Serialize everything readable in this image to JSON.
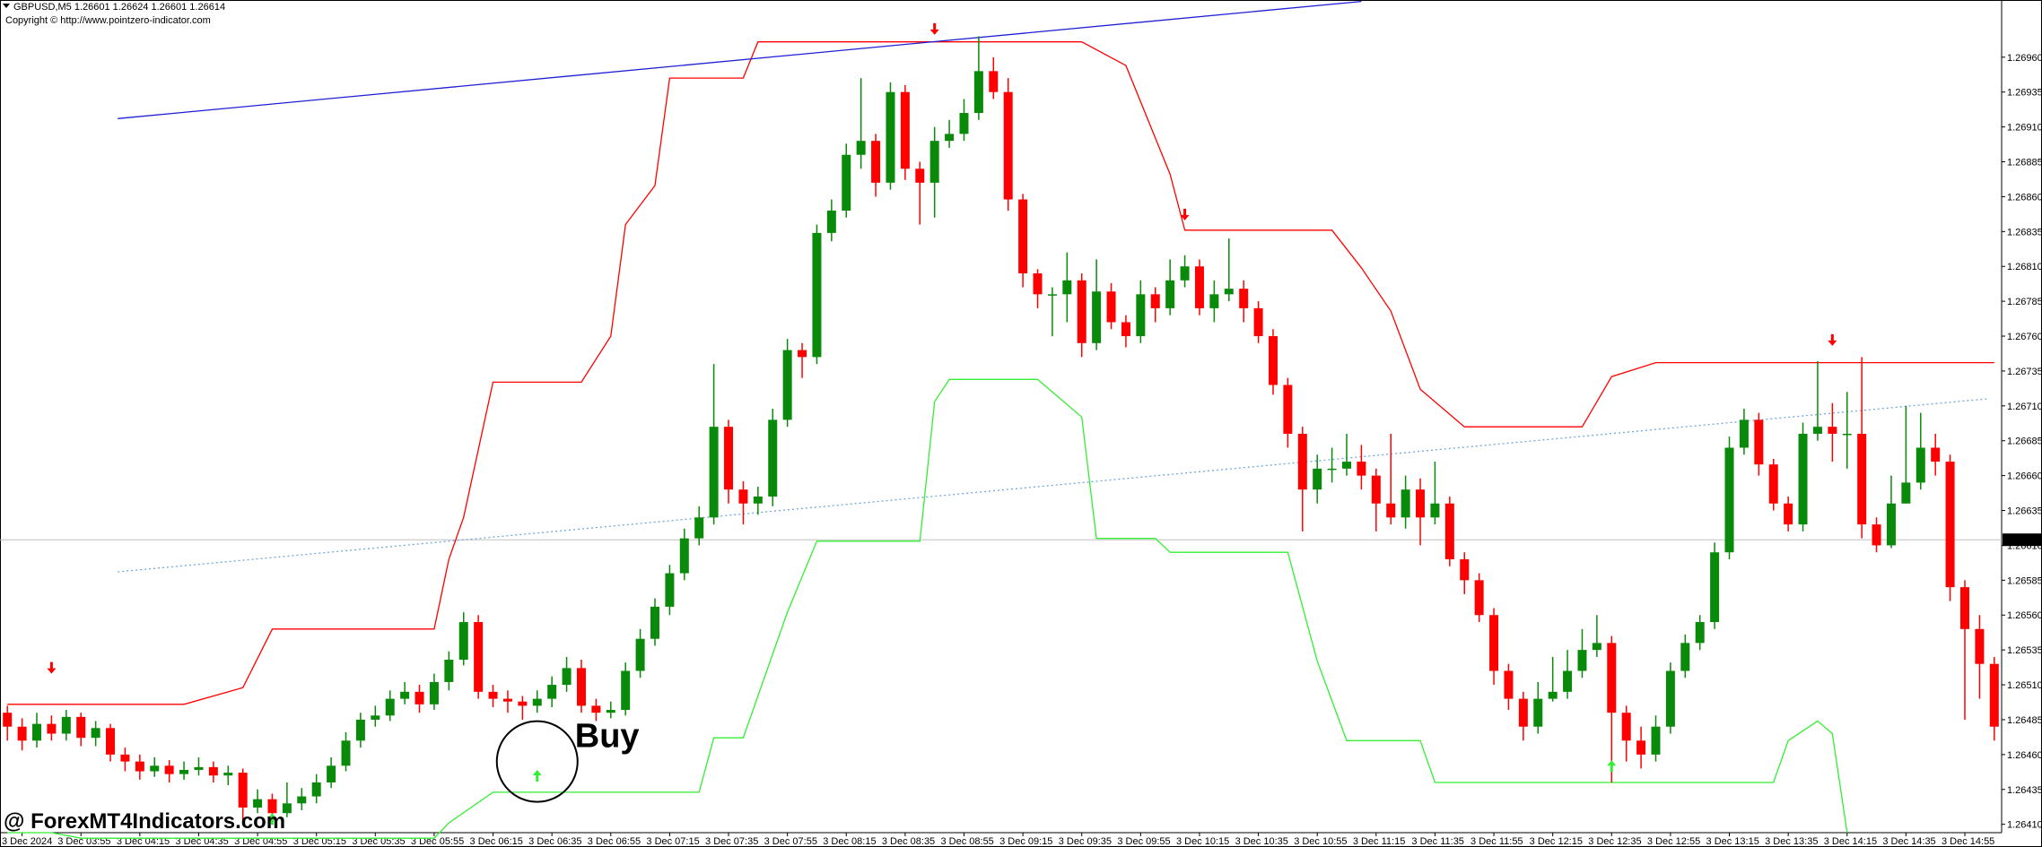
{
  "chart_data": {
    "type": "candlestick",
    "title": "GBPUSD,M5  1.26601 1.26624 1.26601 1.26614",
    "subtitle": "Copyright © http://www.pointzero-indicator.com",
    "up_color": "#0a8a0a",
    "down_color": "#ff0000",
    "open": [
      1.2649,
      1.2648,
      1.2647,
      1.26482,
      1.26475,
      1.26487,
      1.26472,
      1.26479,
      1.2646,
      1.26455,
      1.26448,
      1.26452,
      1.26446,
      1.26449,
      1.26451,
      1.26445,
      1.26447,
      1.26422,
      1.26428,
      1.26418,
      1.26425,
      1.2643,
      1.2644,
      1.26452,
      1.2647,
      1.26485,
      1.26488,
      1.265,
      1.26505,
      1.26496,
      1.26512,
      1.26528,
      1.26555,
      1.26505,
      1.265,
      1.26498,
      1.26495,
      1.265,
      1.2651,
      1.26522,
      1.26495,
      1.2649,
      1.26492,
      1.2652,
      1.26543,
      1.26566,
      1.2659,
      1.26615,
      1.2663,
      1.26695,
      1.2665,
      1.2664,
      1.26645,
      1.267,
      1.2675,
      1.26745,
      1.26834,
      1.2685,
      1.2689,
      1.269,
      1.2687,
      1.26935,
      1.2688,
      1.2687,
      1.269,
      1.26905,
      1.2692,
      1.2695,
      1.26935,
      1.26858,
      1.26805,
      1.2679,
      1.2679,
      1.268,
      1.26755,
      1.26792,
      1.2677,
      1.2676,
      1.2679,
      1.2678,
      1.268,
      1.2681,
      1.2678,
      1.2679,
      1.26794,
      1.2678,
      1.2676,
      1.26725,
      1.2669,
      1.2665,
      1.26665,
      1.26665,
      1.2667,
      1.2666,
      1.2664,
      1.2663,
      1.2665,
      1.2663,
      1.2664,
      1.266,
      1.26585,
      1.2656,
      1.2652,
      1.265,
      1.2648,
      1.265,
      1.26505,
      1.2652,
      1.26535,
      1.2654,
      1.2649,
      1.2647,
      1.2646,
      1.2648,
      1.2652,
      1.2654,
      1.26555,
      1.26605,
      1.2668,
      1.267,
      1.26668,
      1.2664,
      1.26625,
      1.2669,
      1.26695,
      1.2669,
      1.2669,
      1.26625,
      1.2661,
      1.2664,
      1.26655,
      1.2668,
      1.2667,
      1.2658,
      1.2655,
      1.26525
    ],
    "high": [
      1.26495,
      1.26486,
      1.2649,
      1.26488,
      1.26492,
      1.2649,
      1.26484,
      1.26482,
      1.26465,
      1.2646,
      1.26458,
      1.26456,
      1.26455,
      1.26458,
      1.26455,
      1.26452,
      1.2645,
      1.26435,
      1.26432,
      1.2644,
      1.26436,
      1.26446,
      1.26458,
      1.26476,
      1.2649,
      1.26495,
      1.26506,
      1.26512,
      1.2651,
      1.26518,
      1.26534,
      1.26562,
      1.2656,
      1.2651,
      1.26506,
      1.26502,
      1.26506,
      1.26516,
      1.2653,
      1.26528,
      1.265,
      1.26498,
      1.26526,
      1.2655,
      1.26572,
      1.26596,
      1.26622,
      1.26638,
      1.2674,
      1.267,
      1.26656,
      1.26652,
      1.26708,
      1.26758,
      1.26755,
      1.2684,
      1.26858,
      1.26898,
      1.26945,
      1.26905,
      1.26942,
      1.2694,
      1.26885,
      1.2691,
      1.26915,
      1.2693,
      1.26975,
      1.2696,
      1.26945,
      1.26862,
      1.26808,
      1.26795,
      1.2682,
      1.26805,
      1.26815,
      1.26798,
      1.26775,
      1.268,
      1.26795,
      1.26815,
      1.26818,
      1.26815,
      1.268,
      1.2683,
      1.268,
      1.26785,
      1.26765,
      1.2673,
      1.26695,
      1.26675,
      1.2668,
      1.2669,
      1.26682,
      1.26665,
      1.2669,
      1.2666,
      1.26658,
      1.2667,
      1.26645,
      1.26605,
      1.2659,
      1.26565,
      1.26525,
      1.26505,
      1.26512,
      1.2653,
      1.26535,
      1.2655,
      1.2656,
      1.26545,
      1.26495,
      1.2648,
      1.26488,
      1.26526,
      1.26546,
      1.2656,
      1.26612,
      1.26688,
      1.26708,
      1.26705,
      1.26672,
      1.26645,
      1.26698,
      1.26742,
      1.26712,
      1.2672,
      1.26745,
      1.2663,
      1.2666,
      1.2671,
      1.26705,
      1.2669,
      1.26675,
      1.26585,
      1.2656,
      1.2653
    ],
    "low": [
      1.2647,
      1.26463,
      1.26465,
      1.2647,
      1.2647,
      1.26466,
      1.26466,
      1.26455,
      1.26448,
      1.26442,
      1.26444,
      1.2644,
      1.26442,
      1.26445,
      1.2644,
      1.26438,
      1.26412,
      1.26418,
      1.2641,
      1.26415,
      1.2642,
      1.26425,
      1.26436,
      1.26448,
      1.26465,
      1.2648,
      1.26484,
      1.26496,
      1.2649,
      1.26492,
      1.26506,
      1.26524,
      1.265,
      1.26494,
      1.2649,
      1.26485,
      1.2649,
      1.26494,
      1.26505,
      1.2649,
      1.26484,
      1.26486,
      1.26488,
      1.26515,
      1.26538,
      1.2656,
      1.26585,
      1.2661,
      1.26625,
      1.2664,
      1.26625,
      1.26632,
      1.26638,
      1.26695,
      1.2673,
      1.2674,
      1.26828,
      1.26845,
      1.2688,
      1.2686,
      1.26865,
      1.26872,
      1.2684,
      1.26845,
      1.26895,
      1.269,
      1.26915,
      1.2693,
      1.2685,
      1.26795,
      1.2678,
      1.2676,
      1.2677,
      1.26745,
      1.2675,
      1.26765,
      1.26752,
      1.26755,
      1.2677,
      1.26775,
      1.26795,
      1.26775,
      1.2677,
      1.26785,
      1.2677,
      1.26755,
      1.26718,
      1.2668,
      1.2662,
      1.2664,
      1.26655,
      1.2666,
      1.2665,
      1.2662,
      1.26625,
      1.26622,
      1.2661,
      1.26625,
      1.26595,
      1.26575,
      1.26555,
      1.2651,
      1.26492,
      1.2647,
      1.26475,
      1.26498,
      1.265,
      1.26515,
      1.2653,
      1.2644,
      1.26455,
      1.2645,
      1.26455,
      1.26475,
      1.26515,
      1.26535,
      1.2655,
      1.266,
      1.26675,
      1.2666,
      1.26635,
      1.2662,
      1.2662,
      1.26685,
      1.2667,
      1.26665,
      1.26615,
      1.26605,
      1.26608,
      1.2664,
      1.2665,
      1.2666,
      1.2657,
      1.26485,
      1.265,
      1.2647
    ],
    "close": [
      1.2648,
      1.2647,
      1.26482,
      1.26475,
      1.26487,
      1.26472,
      1.26479,
      1.2646,
      1.26455,
      1.26448,
      1.26452,
      1.26446,
      1.26449,
      1.26451,
      1.26445,
      1.26447,
      1.26422,
      1.26428,
      1.26418,
      1.26425,
      1.2643,
      1.2644,
      1.26452,
      1.2647,
      1.26485,
      1.26488,
      1.265,
      1.26505,
      1.26496,
      1.26512,
      1.26528,
      1.26555,
      1.26505,
      1.265,
      1.26498,
      1.26495,
      1.265,
      1.2651,
      1.26522,
      1.26495,
      1.2649,
      1.26492,
      1.2652,
      1.26543,
      1.26566,
      1.2659,
      1.26615,
      1.2663,
      1.26695,
      1.2665,
      1.2664,
      1.26645,
      1.267,
      1.2675,
      1.26745,
      1.26834,
      1.2685,
      1.2689,
      1.269,
      1.2687,
      1.26935,
      1.2688,
      1.2687,
      1.269,
      1.26905,
      1.2692,
      1.2695,
      1.26935,
      1.26858,
      1.26805,
      1.2679,
      1.2679,
      1.268,
      1.26755,
      1.26792,
      1.2677,
      1.2676,
      1.2679,
      1.2678,
      1.268,
      1.2681,
      1.2678,
      1.2679,
      1.26794,
      1.2678,
      1.2676,
      1.26725,
      1.2669,
      1.2665,
      1.26665,
      1.26665,
      1.2667,
      1.2666,
      1.2664,
      1.2663,
      1.2665,
      1.2663,
      1.2664,
      1.266,
      1.26585,
      1.2656,
      1.2652,
      1.265,
      1.2648,
      1.265,
      1.26505,
      1.2652,
      1.26535,
      1.2654,
      1.2649,
      1.2647,
      1.2646,
      1.2648,
      1.2652,
      1.2654,
      1.26555,
      1.26605,
      1.2668,
      1.267,
      1.26668,
      1.2664,
      1.26625,
      1.2669,
      1.26695,
      1.2669,
      1.2669,
      1.26625,
      1.2661,
      1.2664,
      1.26655,
      1.2668,
      1.2667,
      1.2658,
      1.2655,
      1.26525,
      1.2648
    ],
    "ylim": [
      1.26404,
      1.27001
    ],
    "yticks": [
      {
        "value": 1.2641,
        "label": "1.26410"
      },
      1.26435,
      {
        "value": 1.2646,
        "label": "1.26460"
      },
      1.26485,
      {
        "value": 1.2651,
        "label": "1.26510"
      },
      1.26535,
      {
        "value": 1.2656,
        "label": "1.26560"
      },
      1.26585,
      {
        "value": 1.2661,
        "label": "1.26610"
      },
      1.26635,
      {
        "value": 1.2666,
        "label": "1.26660"
      },
      1.26685,
      {
        "value": 1.2671,
        "label": "1.26710"
      },
      1.26735,
      {
        "value": 1.2676,
        "label": "1.26760"
      },
      1.26785,
      {
        "value": 1.2681,
        "label": "1.26810"
      },
      1.26835,
      {
        "value": 1.2686,
        "label": "1.26860"
      },
      1.26885,
      {
        "value": 1.2691,
        "label": "1.26910"
      },
      1.26935,
      {
        "value": 1.2696,
        "label": "1.26960"
      }
    ],
    "xticks": [
      {
        "value": 1,
        "label": "3 Dec 2024"
      },
      {
        "value": 5,
        "label": "3 Dec 03:55"
      },
      {
        "value": 9,
        "label": "3 Dec 04:15"
      },
      {
        "value": 13,
        "label": "3 Dec 04:35"
      },
      {
        "value": 17,
        "label": "3 Dec 04:55"
      },
      {
        "value": 21,
        "label": "3 Dec 05:15"
      },
      {
        "value": 25,
        "label": "3 Dec 05:35"
      },
      {
        "value": 29,
        "label": "3 Dec 05:55"
      },
      {
        "value": 33,
        "label": "3 Dec 06:15"
      },
      {
        "value": 37,
        "label": "3 Dec 06:35"
      },
      {
        "value": 41,
        "label": "3 Dec 06:55"
      },
      {
        "value": 45,
        "label": "3 Dec 07:15"
      },
      {
        "value": 49,
        "label": "3 Dec 07:35"
      },
      {
        "value": 53,
        "label": "3 Dec 07:55"
      },
      {
        "value": 57,
        "label": "3 Dec 08:15"
      },
      {
        "value": 61,
        "label": "3 Dec 08:35"
      },
      {
        "value": 65,
        "label": "3 Dec 08:55"
      },
      {
        "value": 69,
        "label": "3 Dec 09:15"
      },
      {
        "value": 73,
        "label": "3 Dec 09:35"
      },
      {
        "value": 77,
        "label": "3 Dec 09:55"
      },
      {
        "value": 81,
        "label": "3 Dec 10:15"
      },
      {
        "value": 85,
        "label": "3 Dec 10:35"
      },
      {
        "value": 89,
        "label": "3 Dec 10:55"
      },
      {
        "value": 93,
        "label": "3 Dec 11:15"
      },
      {
        "value": 97,
        "label": "3 Dec 11:35"
      },
      {
        "value": 101,
        "label": "3 Dec 11:55"
      },
      {
        "value": 105,
        "label": "3 Dec 12:15"
      },
      {
        "value": 109,
        "label": "3 Dec 12:35"
      },
      {
        "value": 113,
        "label": "3 Dec 12:55"
      },
      {
        "value": 117,
        "label": "3 Dec 13:15"
      },
      {
        "value": 121,
        "label": "3 Dec 13:35"
      },
      {
        "value": 125,
        "label": "3 Dec 14:15"
      },
      {
        "value": 129,
        "label": "3 Dec 14:35"
      },
      {
        "value": 133,
        "label": "3 Dec 14:55"
      }
    ],
    "current_price": 1.26614,
    "upper_band": {
      "color": "#ff0000",
      "x": [
        0,
        12,
        16,
        18,
        29,
        30,
        31,
        33,
        39,
        41,
        42,
        44,
        45,
        50,
        51,
        73,
        76,
        79,
        80,
        90,
        92,
        94,
        96,
        99,
        107,
        109,
        112,
        135
      ],
      "values": [
        1.26496,
        1.26496,
        1.26508,
        1.2655,
        1.2655,
        1.266,
        1.2663,
        1.26727,
        1.26727,
        1.2676,
        1.2684,
        1.26868,
        1.26945,
        1.26945,
        1.26971,
        1.26971,
        1.26954,
        1.26876,
        1.26836,
        1.26836,
        1.26809,
        1.26778,
        1.26722,
        1.26695,
        1.26695,
        1.26731,
        1.26741,
        1.26741
      ]
    },
    "lower_band": {
      "color": "#33ee33",
      "x": [
        0,
        3,
        5,
        29,
        30,
        33,
        47,
        48,
        50,
        53,
        55,
        62,
        63,
        64,
        70,
        73,
        74,
        78,
        79,
        87,
        89,
        91,
        96,
        97,
        120,
        121,
        123,
        124,
        125
      ],
      "values": [
        1.26404,
        1.26404,
        1.264,
        1.264,
        1.26411,
        1.26433,
        1.26433,
        1.26472,
        1.26472,
        1.26562,
        1.26613,
        1.26613,
        1.26713,
        1.26729,
        1.26729,
        1.26702,
        1.26615,
        1.26615,
        1.26605,
        1.26605,
        1.26527,
        1.2647,
        1.2647,
        1.2644,
        1.2644,
        1.2647,
        1.26484,
        1.26475,
        1.26404
      ]
    },
    "trendlines": [
      {
        "color": "#1f1fd6",
        "style": "solid",
        "x": [
          7.5,
          92
        ],
        "values": [
          1.26916,
          1.27
        ]
      },
      {
        "color": "#6fa8dc",
        "style": "dotted",
        "x": [
          7.5,
          134.5
        ],
        "values": [
          1.26591,
          1.26715
        ]
      }
    ],
    "signals": {
      "sell": {
        "color": "#ff0000",
        "direction": "down",
        "x": [
          3,
          63,
          80,
          124
        ],
        "values": [
          1.26518,
          1.26976,
          1.26843,
          1.26753
        ]
      },
      "buy": {
        "color": "#33ee33",
        "direction": "up",
        "x": [
          18,
          36,
          109
        ],
        "values": [
          1.26418,
          1.26449,
          1.26456
        ]
      }
    },
    "annotation": {
      "text": "Buy",
      "x": 36,
      "value": 1.26455
    }
  },
  "watermark": "@ ForexMT4Indicators.com"
}
